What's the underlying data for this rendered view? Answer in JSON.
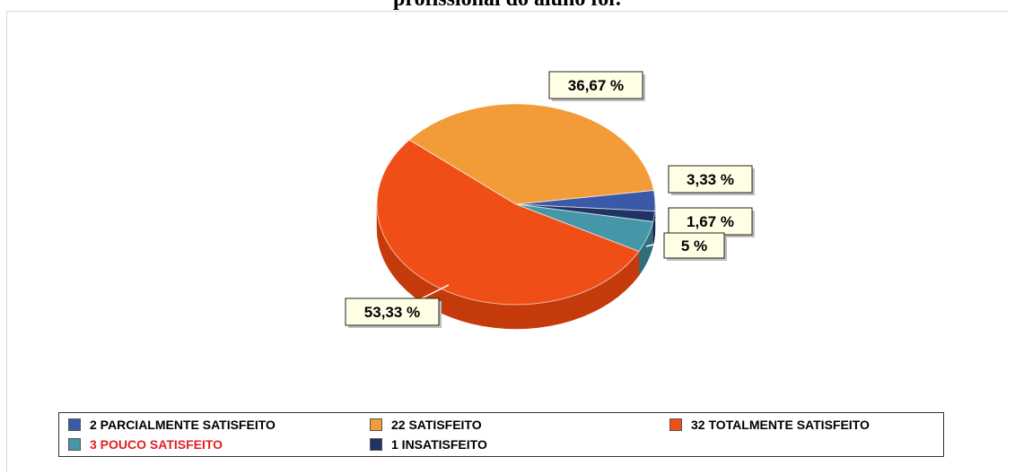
{
  "title": "profissional do aluno foi:",
  "chart_data": {
    "type": "pie",
    "slices": [
      {
        "label": "2 PARCIALMENTE SATISFEITO",
        "value": 3.33,
        "data_label": "3,33 %",
        "color": "#3a5aa8",
        "side_color": "#283f7a"
      },
      {
        "label": "1 INSATISFEITO",
        "value": 1.67,
        "data_label": "1,67 %",
        "color": "#1f3462",
        "side_color": "#142344"
      },
      {
        "label": "3 POUCO SATISFEITO",
        "value": 5,
        "data_label": "5 %",
        "color": "#4596a8",
        "side_color": "#2f6d7b"
      },
      {
        "label": "32 TOTALMENTE SATISFEITO",
        "value": 53.33,
        "data_label": "53,33 %",
        "color": "#f04e17",
        "side_color": "#c43a0a"
      },
      {
        "label": "22 SATISFEITO",
        "value": 36.67,
        "data_label": "36,67 %",
        "color": "#f29b38",
        "side_color": "#c97a22"
      }
    ],
    "legend": [
      {
        "text": "2 PARCIALMENTE SATISFEITO",
        "color": "#3a5aa8",
        "text_color": "#000000"
      },
      {
        "text": "22 SATISFEITO",
        "color": "#f29b38",
        "text_color": "#000000"
      },
      {
        "text": "32 TOTALMENTE SATISFEITO",
        "color": "#f04e17",
        "text_color": "#000000"
      },
      {
        "text": "3 POUCO SATISFEITO",
        "color": "#4596a8",
        "text_color": "#e02020"
      },
      {
        "text": "1 INSATISFEITO",
        "color": "#1f3462",
        "text_color": "#000000"
      }
    ],
    "legend_position": "bottom",
    "label_background": "#ffffe6"
  }
}
